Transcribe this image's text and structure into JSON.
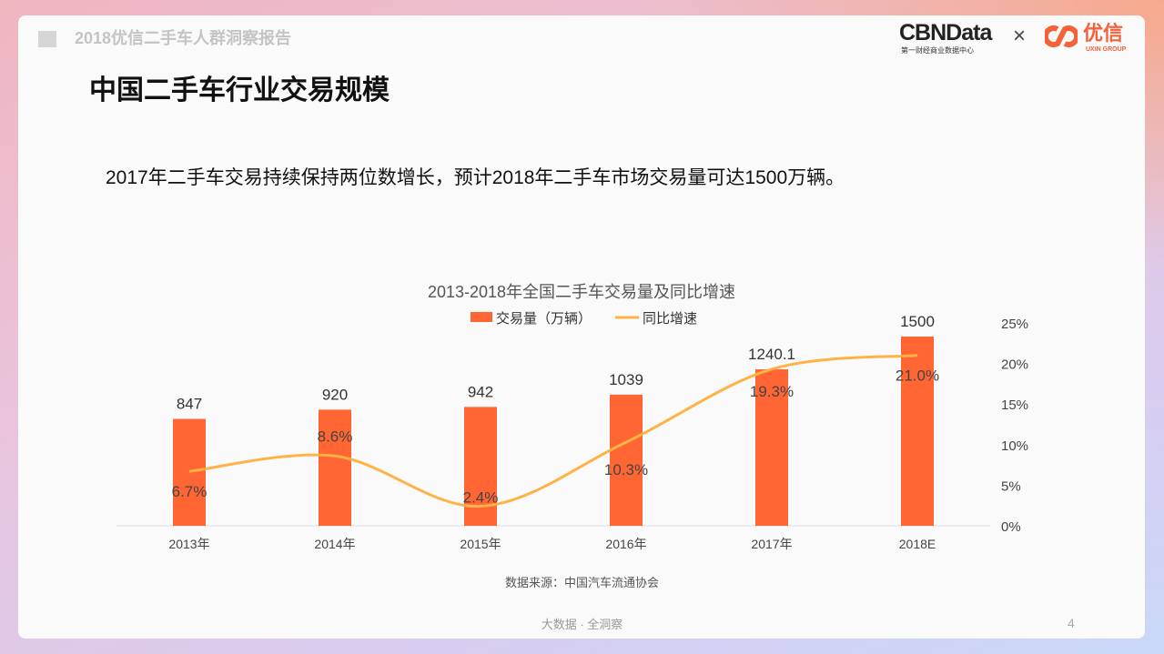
{
  "header": {
    "report_title": "2018优信二手车人群洞察报告",
    "logo_cbn": "CBNData",
    "logo_cbn_sub": "第一财经商业数据中心",
    "separator": "×",
    "logo_uxin": "优信",
    "logo_uxin_sub": "UXIN GROUP"
  },
  "page_title": "中国二手车行业交易规模",
  "subtitle": "2017年二手车交易持续保持两位数增长，预计2018年二手车市场交易量可达1500万辆。",
  "chart_data": {
    "type": "bar+line",
    "title": "2013-2018年全国二手车交易量及同比增速",
    "categories": [
      "2013年",
      "2014年",
      "2015年",
      "2016年",
      "2017年",
      "2018E"
    ],
    "series": [
      {
        "name": "交易量（万辆）",
        "type": "bar",
        "axis": "left",
        "color": "#ff6633",
        "values": [
          847,
          920,
          942,
          1039,
          1240.1,
          1500
        ],
        "labels": [
          "847",
          "920",
          "942",
          "1039",
          "1240.1",
          "1500"
        ]
      },
      {
        "name": "同比增速",
        "type": "line",
        "axis": "right",
        "color": "#ffb347",
        "values": [
          6.7,
          8.6,
          2.4,
          10.3,
          19.3,
          21.0
        ],
        "labels": [
          "6.7%",
          "8.6%",
          "2.4%",
          "10.3%",
          "19.3%",
          "21.0%"
        ]
      }
    ],
    "y_right": {
      "ticks": [
        "0%",
        "5%",
        "10%",
        "15%",
        "20%",
        "25%"
      ],
      "range": [
        0,
        25
      ]
    },
    "y_left_range": [
      0,
      1500
    ],
    "legend": "top-center",
    "grid": false
  },
  "source": "数据来源：中国汽车流通协会",
  "footer": "大数据 · 全洞察",
  "page_number": "4"
}
